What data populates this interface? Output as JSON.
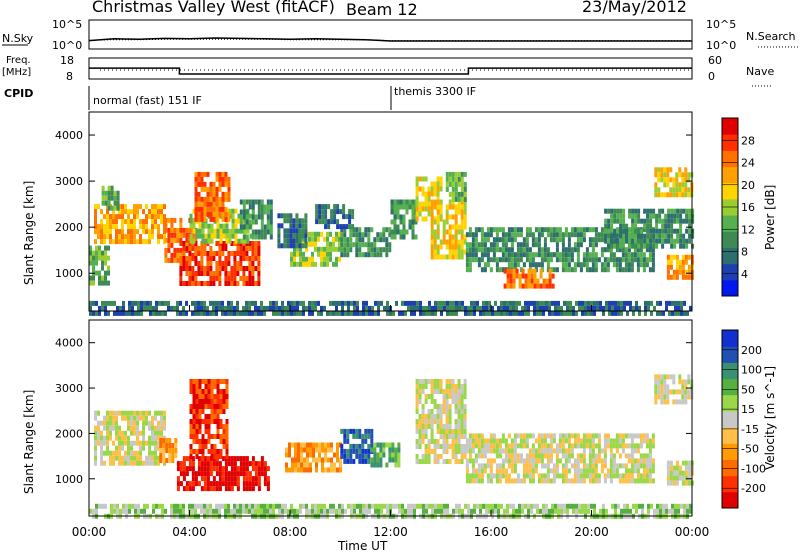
{
  "header": {
    "station": "Christmas Valley West (fitACF)",
    "beam": "Beam 12",
    "date": "23/May/2012"
  },
  "noise_panel": {
    "left_label": "N.Sky",
    "right_label": "N.Search",
    "left_ticks": [
      "10^5",
      "10^0"
    ],
    "right_ticks": [
      "10^5",
      "10^0"
    ],
    "sky_level_log10": [
      1.0,
      1.4,
      1.3,
      1.5,
      1.4,
      1.6,
      1.5,
      1.4,
      1.3,
      1.4,
      1.3,
      1.2,
      0.9,
      0.9,
      0.9,
      0.9,
      0.9,
      0.9,
      0.9,
      0.9,
      0.9,
      0.9,
      0.9,
      0.9,
      0.9
    ],
    "search_level_log10": [
      1.1,
      1.2,
      1.2,
      1.3,
      1.3,
      1.3,
      1.3,
      1.3,
      1.2,
      1.2,
      1.2,
      1.2,
      1.0,
      1.0,
      1.0,
      1.0,
      1.0,
      1.0,
      1.0,
      1.0,
      1.0,
      1.0,
      1.0,
      1.0,
      1.0
    ]
  },
  "freq_panel": {
    "left_label_1": "Freq.",
    "left_label_2": "[MHz]",
    "right_label": "Nave",
    "left_ticks": [
      "18",
      "8"
    ],
    "right_ticks": [
      "60",
      "0"
    ],
    "freq_mhz": [
      {
        "t": 0,
        "f": 13.5
      },
      {
        "t": 3.6,
        "f": 13.5
      },
      {
        "t": 3.6,
        "f": 10.2
      },
      {
        "t": 15.1,
        "f": 10.2
      },
      {
        "t": 15.1,
        "f": 13.5
      },
      {
        "t": 24,
        "f": 13.5
      }
    ]
  },
  "cpid_panel": {
    "label": "CPID",
    "segments": [
      {
        "start_h": 0,
        "end_h": 12,
        "text": "normal (fast) 151 IF"
      },
      {
        "start_h": 12,
        "end_h": 24,
        "text": "themis 3300 IF"
      }
    ]
  },
  "chart_data": [
    {
      "type": "heatmap",
      "name": "power",
      "ylabel": "Slant Range [km]",
      "xlim_hours": [
        0,
        24
      ],
      "ylim_km": [
        180,
        4500
      ],
      "yticks": [
        1000,
        2000,
        3000,
        4000
      ],
      "colorbar": {
        "label": "Power [dB]",
        "ticks": [
          "28",
          "24",
          "20",
          "16",
          "12",
          "8",
          "4"
        ],
        "colors": [
          "#0018f0",
          "#1e3fb0",
          "#2d6e6e",
          "#3e8a55",
          "#55b050",
          "#9acd32",
          "#ffd400",
          "#ffa000",
          "#ff7000",
          "#ff3000",
          "#e00000"
        ]
      },
      "regions": [
        {
          "t0": 0.2,
          "t1": 3.0,
          "r0": 1700,
          "r1": 2500,
          "level": 7
        },
        {
          "t0": 0.5,
          "t1": 1.2,
          "r0": 2400,
          "r1": 2900,
          "level": 4
        },
        {
          "t0": 0.0,
          "t1": 0.8,
          "r0": 800,
          "r1": 1600,
          "level": 4
        },
        {
          "t0": 3.0,
          "t1": 4.2,
          "r0": 1300,
          "r1": 2200,
          "level": 8
        },
        {
          "t0": 3.6,
          "t1": 6.8,
          "r0": 800,
          "r1": 1700,
          "level": 9
        },
        {
          "t0": 4.0,
          "t1": 6.5,
          "r0": 1700,
          "r1": 2400,
          "level": 5
        },
        {
          "t0": 4.2,
          "t1": 5.6,
          "r0": 2200,
          "r1": 3200,
          "level": 8
        },
        {
          "t0": 6.0,
          "t1": 7.2,
          "r0": 1800,
          "r1": 2600,
          "level": 3
        },
        {
          "t0": 8.0,
          "t1": 10.0,
          "r0": 1200,
          "r1": 1900,
          "level": 5
        },
        {
          "t0": 7.5,
          "t1": 8.6,
          "r0": 1600,
          "r1": 2300,
          "level": 2
        },
        {
          "t0": 10.0,
          "t1": 12.0,
          "r0": 1400,
          "r1": 2000,
          "level": 3
        },
        {
          "t0": 9.0,
          "t1": 10.5,
          "r0": 2000,
          "r1": 2500,
          "level": 2
        },
        {
          "t0": 12.0,
          "t1": 13.0,
          "r0": 1800,
          "r1": 2600,
          "level": 3
        },
        {
          "t0": 13.0,
          "t1": 14.0,
          "r0": 2200,
          "r1": 3100,
          "level": 6
        },
        {
          "t0": 13.6,
          "t1": 15.0,
          "r0": 1400,
          "r1": 2600,
          "level": 6
        },
        {
          "t0": 14.2,
          "t1": 15.0,
          "r0": 2600,
          "r1": 3200,
          "level": 4
        },
        {
          "t0": 15.0,
          "t1": 22.5,
          "r0": 1100,
          "r1": 2000,
          "level": 3
        },
        {
          "t0": 16.5,
          "t1": 18.5,
          "r0": 700,
          "r1": 1100,
          "level": 8
        },
        {
          "t0": 20.5,
          "t1": 24.0,
          "r0": 1600,
          "r1": 2400,
          "level": 3
        },
        {
          "t0": 22.5,
          "t1": 24.0,
          "r0": 2700,
          "r1": 3300,
          "level": 6
        },
        {
          "t0": 23.0,
          "t1": 24.0,
          "r0": 900,
          "r1": 1400,
          "level": 7
        },
        {
          "t0": 0.0,
          "t1": 24.0,
          "r0": 180,
          "r1": 400,
          "level": 2
        }
      ]
    },
    {
      "type": "heatmap",
      "name": "velocity",
      "ylabel": "Slant Range [km]",
      "xlabel": "Time UT",
      "xticks": [
        "00:00",
        "04:00",
        "08:00",
        "12:00",
        "16:00",
        "20:00",
        "00:00"
      ],
      "xlim_hours": [
        0,
        24
      ],
      "ylim_km": [
        180,
        4500
      ],
      "yticks": [
        1000,
        2000,
        3000,
        4000
      ],
      "colorbar": {
        "label": "Velocity [m s^-1]",
        "ticks": [
          "200",
          "100",
          "50",
          "15",
          "-15",
          "-50",
          "-100",
          "-200"
        ],
        "colors": [
          "#e00000",
          "#ff3000",
          "#ff6a00",
          "#ff9a00",
          "#ffc04a",
          "#c8c8c8",
          "#9ad84a",
          "#55b040",
          "#3a9070",
          "#2050b0",
          "#1030d0"
        ]
      },
      "regions": [
        {
          "t0": 0.2,
          "t1": 3.0,
          "r0": 1300,
          "r1": 2500,
          "level": 5
        },
        {
          "t0": 2.8,
          "t1": 3.4,
          "r0": 1400,
          "r1": 1900,
          "level": 3
        },
        {
          "t0": 3.5,
          "t1": 7.2,
          "r0": 800,
          "r1": 1500,
          "level": 0
        },
        {
          "t0": 4.0,
          "t1": 5.5,
          "r0": 1500,
          "r1": 3200,
          "level": 1
        },
        {
          "t0": 7.8,
          "t1": 10.0,
          "r0": 1200,
          "r1": 1800,
          "level": 3
        },
        {
          "t0": 10.0,
          "t1": 11.2,
          "r0": 1400,
          "r1": 2100,
          "level": 9
        },
        {
          "t0": 11.2,
          "t1": 12.3,
          "r0": 1300,
          "r1": 1800,
          "level": 7
        },
        {
          "t0": 13.0,
          "t1": 15.0,
          "r0": 1400,
          "r1": 3200,
          "level": 5
        },
        {
          "t0": 15.0,
          "t1": 22.5,
          "r0": 1000,
          "r1": 2000,
          "level": 5
        },
        {
          "t0": 22.5,
          "t1": 24.0,
          "r0": 2700,
          "r1": 3300,
          "level": 5
        },
        {
          "t0": 23.0,
          "t1": 24.0,
          "r0": 900,
          "r1": 1400,
          "level": 5
        },
        {
          "t0": 0.0,
          "t1": 24.0,
          "r0": 180,
          "r1": 450,
          "level": 6
        }
      ]
    }
  ]
}
